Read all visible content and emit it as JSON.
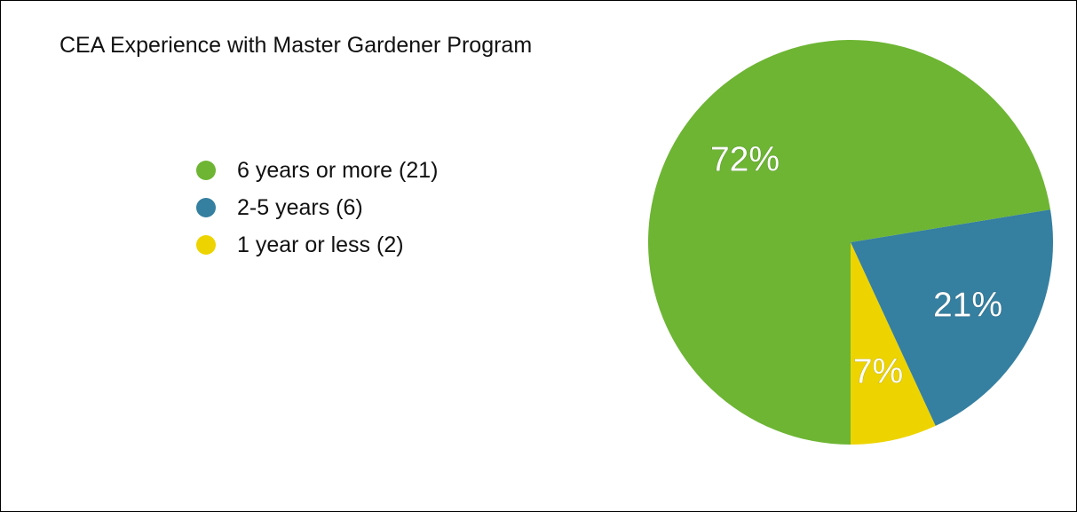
{
  "chart_data": {
    "type": "pie",
    "title": "CEA Experience with Master Gardener Program",
    "legend_position": "left",
    "slices": [
      {
        "label": "6 years or more (21)",
        "value": 21,
        "percent_label": "72%",
        "color": "#6db533"
      },
      {
        "label": "2-5 years (6)",
        "value": 6,
        "percent_label": "21%",
        "color": "#357fa0"
      },
      {
        "label": "1 year or less (2)",
        "value": 2,
        "percent_label": "7%",
        "color": "#edd400"
      }
    ]
  }
}
